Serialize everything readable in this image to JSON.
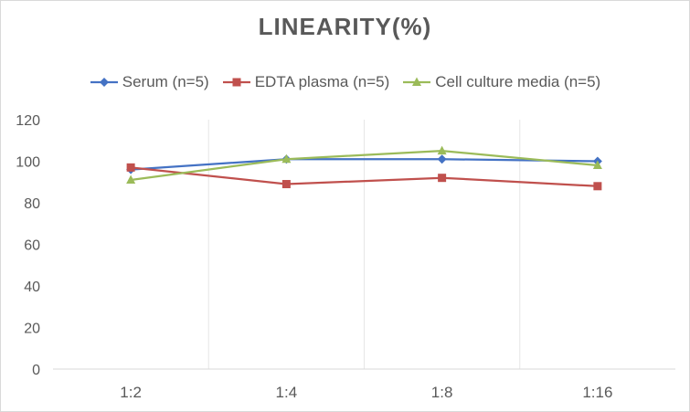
{
  "chart_data": {
    "type": "line",
    "title": "LINEARITY(%)",
    "categories": [
      "1:2",
      "1:4",
      "1:8",
      "1:16"
    ],
    "ylim": [
      0,
      120
    ],
    "yticks": [
      0,
      20,
      40,
      60,
      80,
      100,
      120
    ],
    "grid": "vertical",
    "legend_position": "top",
    "series": [
      {
        "name": "Serum (n=5)",
        "values": [
          96,
          101,
          101,
          100
        ],
        "color": "#4472c4",
        "marker": "diamond"
      },
      {
        "name": "EDTA plasma (n=5)",
        "values": [
          97,
          89,
          92,
          88
        ],
        "color": "#c0504d",
        "marker": "square"
      },
      {
        "name": "Cell culture media (n=5)",
        "values": [
          91,
          101,
          105,
          98
        ],
        "color": "#9bbb59",
        "marker": "triangle"
      }
    ]
  }
}
